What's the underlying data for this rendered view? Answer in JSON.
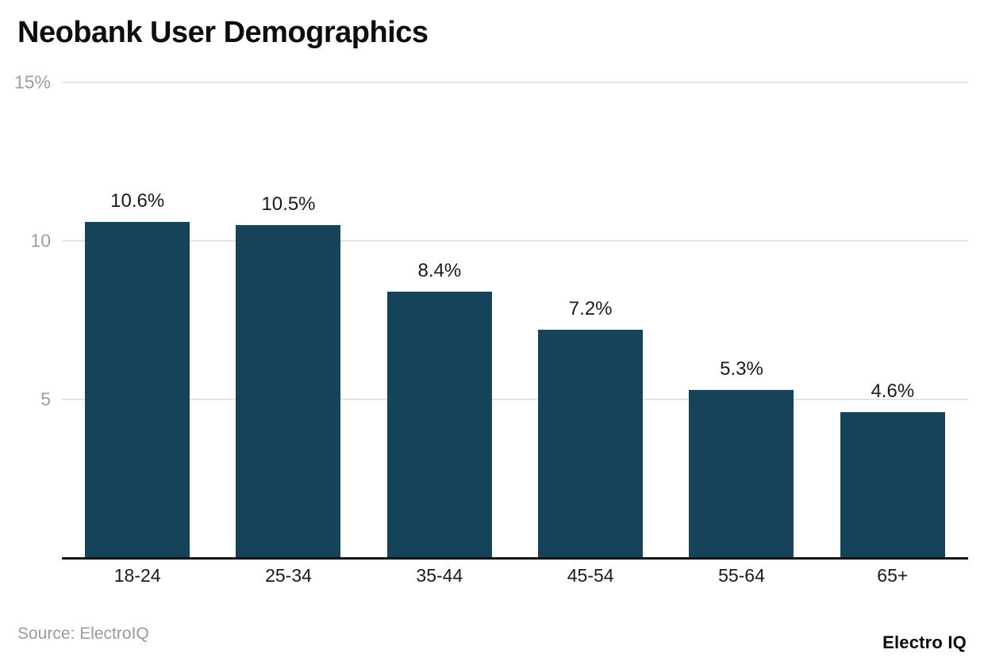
{
  "title": "Neobank User Demographics",
  "footer": {
    "source": "Source: ElectroIQ",
    "brand": "Electro IQ"
  },
  "colors": {
    "bar": "#17435a",
    "gridline": "#e4e4e4",
    "axis_line": "#141414",
    "tick_label": "#9e9e9e",
    "text": "#1a1a1a",
    "background": "#ffffff"
  },
  "chart_data": {
    "type": "bar",
    "title": "Neobank User Demographics",
    "categories": [
      "18-24",
      "25-34",
      "35-44",
      "45-54",
      "55-64",
      "65+"
    ],
    "values": [
      10.6,
      10.5,
      8.4,
      7.2,
      5.3,
      4.6
    ],
    "value_labels": [
      "10.6%",
      "10.5%",
      "8.4%",
      "7.2%",
      "5.3%",
      "4.6%"
    ],
    "xlabel": "",
    "ylabel": "",
    "ylim": [
      0,
      15
    ],
    "yticks": [
      {
        "value": 15,
        "label": "15%"
      },
      {
        "value": 10,
        "label": "10"
      },
      {
        "value": 5,
        "label": "5"
      }
    ],
    "grid": true,
    "legend": false,
    "source": "ElectroIQ"
  }
}
